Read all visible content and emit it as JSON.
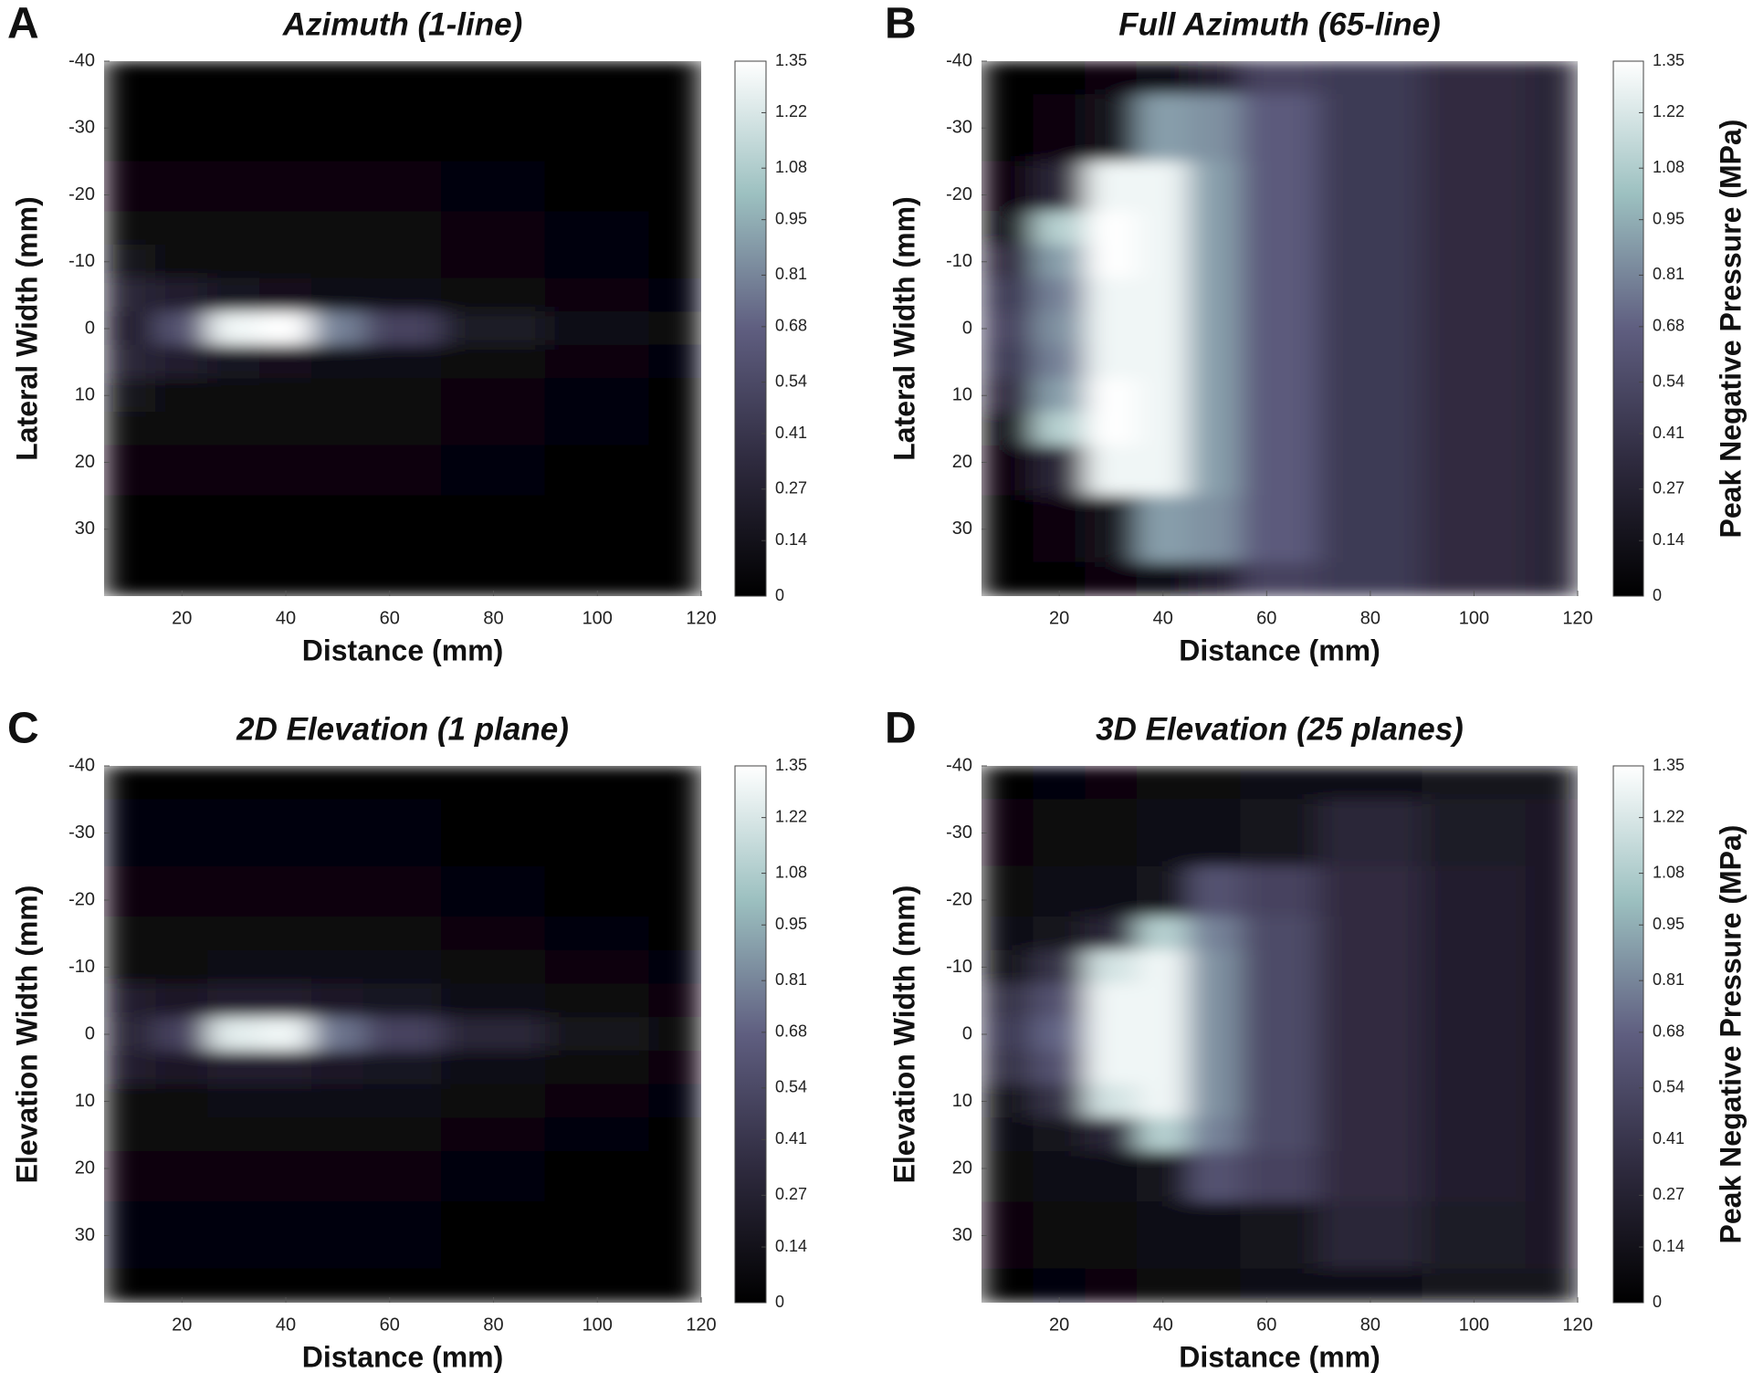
{
  "chart_data": [
    {
      "type": "heatmap",
      "panel": "A",
      "title": "Azimuth (1-line)",
      "xlabel": "Distance (mm)",
      "ylabel": "Lateral Width (mm)",
      "x": [
        10,
        20,
        30,
        40,
        50,
        60,
        80,
        100,
        120
      ],
      "y": [
        -40,
        -30,
        -20,
        -15,
        -10,
        -5,
        0,
        5,
        10,
        15,
        20,
        30,
        40
      ],
      "z": [
        [
          0.02,
          0.02,
          0.02,
          0.02,
          0.02,
          0.02,
          0.02,
          0.02,
          0.02
        ],
        [
          0.03,
          0.03,
          0.03,
          0.03,
          0.03,
          0.03,
          0.03,
          0.02,
          0.02
        ],
        [
          0.05,
          0.05,
          0.05,
          0.05,
          0.05,
          0.05,
          0.04,
          0.03,
          0.03
        ],
        [
          0.06,
          0.06,
          0.06,
          0.06,
          0.06,
          0.06,
          0.05,
          0.04,
          0.03
        ],
        [
          0.15,
          0.08,
          0.07,
          0.07,
          0.07,
          0.06,
          0.05,
          0.04,
          0.03
        ],
        [
          0.3,
          0.25,
          0.18,
          0.14,
          0.12,
          0.1,
          0.08,
          0.05,
          0.04
        ],
        [
          0.25,
          0.6,
          1.3,
          1.35,
          0.8,
          0.5,
          0.22,
          0.1,
          0.06
        ],
        [
          0.3,
          0.25,
          0.18,
          0.14,
          0.12,
          0.1,
          0.08,
          0.05,
          0.04
        ],
        [
          0.15,
          0.08,
          0.07,
          0.07,
          0.07,
          0.06,
          0.05,
          0.04,
          0.03
        ],
        [
          0.06,
          0.06,
          0.06,
          0.06,
          0.06,
          0.06,
          0.05,
          0.04,
          0.03
        ],
        [
          0.05,
          0.05,
          0.05,
          0.05,
          0.05,
          0.05,
          0.04,
          0.03,
          0.03
        ],
        [
          0.03,
          0.03,
          0.03,
          0.03,
          0.03,
          0.03,
          0.03,
          0.02,
          0.02
        ],
        [
          0.02,
          0.02,
          0.02,
          0.02,
          0.02,
          0.02,
          0.02,
          0.02,
          0.02
        ]
      ],
      "xlim": [
        5,
        120
      ],
      "ylim": [
        -40,
        40
      ],
      "xticks": [
        20,
        40,
        60,
        80,
        100,
        120
      ],
      "yticks": [
        -40,
        -30,
        -20,
        -10,
        0,
        10,
        20,
        30
      ],
      "clim": [
        0,
        1.35
      ],
      "cticks": [
        0,
        0.14,
        0.27,
        0.41,
        0.54,
        0.68,
        0.81,
        0.95,
        1.08,
        1.22,
        1.35
      ],
      "colorscale": [
        "#000000",
        "#2e2a3e",
        "#5f5e80",
        "#9cc0c0",
        "#ffffff"
      ]
    },
    {
      "type": "heatmap",
      "panel": "B",
      "title": "Full Azimuth (65-line)",
      "xlabel": "Distance (mm)",
      "ylabel": "Lateral Width (mm)",
      "clabel": "Peak Negative Pressure (MPa)",
      "x": [
        10,
        20,
        30,
        40,
        50,
        60,
        80,
        100,
        120
      ],
      "y": [
        -40,
        -30,
        -20,
        -15,
        -10,
        -5,
        0,
        5,
        10,
        15,
        20,
        30,
        40
      ],
      "z": [
        [
          0.02,
          0.03,
          0.05,
          0.1,
          0.25,
          0.5,
          0.45,
          0.35,
          0.3
        ],
        [
          0.03,
          0.05,
          0.15,
          0.9,
          0.85,
          0.65,
          0.45,
          0.35,
          0.3
        ],
        [
          0.05,
          0.3,
          1.3,
          1.3,
          0.9,
          0.65,
          0.45,
          0.35,
          0.3
        ],
        [
          0.1,
          1.1,
          1.35,
          1.3,
          0.9,
          0.65,
          0.45,
          0.35,
          0.3
        ],
        [
          0.35,
          0.9,
          1.35,
          1.3,
          0.9,
          0.65,
          0.45,
          0.35,
          0.3
        ],
        [
          0.45,
          0.8,
          1.3,
          1.3,
          0.9,
          0.65,
          0.45,
          0.35,
          0.3
        ],
        [
          0.5,
          0.85,
          1.3,
          1.3,
          0.9,
          0.65,
          0.45,
          0.35,
          0.3
        ],
        [
          0.45,
          0.8,
          1.3,
          1.3,
          0.9,
          0.65,
          0.45,
          0.35,
          0.3
        ],
        [
          0.35,
          0.9,
          1.35,
          1.3,
          0.9,
          0.65,
          0.45,
          0.35,
          0.3
        ],
        [
          0.1,
          1.1,
          1.35,
          1.3,
          0.9,
          0.65,
          0.45,
          0.35,
          0.3
        ],
        [
          0.05,
          0.3,
          1.3,
          1.3,
          0.9,
          0.65,
          0.45,
          0.35,
          0.3
        ],
        [
          0.03,
          0.05,
          0.15,
          0.9,
          0.85,
          0.65,
          0.45,
          0.35,
          0.3
        ],
        [
          0.02,
          0.03,
          0.05,
          0.1,
          0.25,
          0.5,
          0.45,
          0.35,
          0.3
        ]
      ],
      "xlim": [
        5,
        120
      ],
      "ylim": [
        -40,
        40
      ],
      "xticks": [
        20,
        40,
        60,
        80,
        100,
        120
      ],
      "yticks": [
        -40,
        -30,
        -20,
        -10,
        0,
        10,
        20,
        30
      ],
      "clim": [
        0,
        1.35
      ],
      "cticks": [
        0,
        0.14,
        0.27,
        0.41,
        0.54,
        0.68,
        0.81,
        0.95,
        1.08,
        1.22,
        1.35
      ],
      "colorscale": [
        "#000000",
        "#2e2a3e",
        "#5f5e80",
        "#9cc0c0",
        "#ffffff"
      ]
    },
    {
      "type": "heatmap",
      "panel": "C",
      "title": "2D Elevation (1 plane)",
      "xlabel": "Distance (mm)",
      "ylabel": "Elevation Width (mm)",
      "x": [
        10,
        20,
        30,
        40,
        50,
        60,
        80,
        100,
        120
      ],
      "y": [
        -40,
        -30,
        -20,
        -15,
        -10,
        -5,
        0,
        5,
        10,
        15,
        20,
        30,
        40
      ],
      "z": [
        [
          0.02,
          0.02,
          0.02,
          0.02,
          0.02,
          0.02,
          0.02,
          0.02,
          0.02
        ],
        [
          0.04,
          0.04,
          0.04,
          0.04,
          0.04,
          0.04,
          0.03,
          0.03,
          0.02
        ],
        [
          0.05,
          0.05,
          0.05,
          0.05,
          0.05,
          0.05,
          0.04,
          0.03,
          0.03
        ],
        [
          0.06,
          0.06,
          0.06,
          0.06,
          0.06,
          0.06,
          0.05,
          0.04,
          0.03
        ],
        [
          0.08,
          0.08,
          0.1,
          0.1,
          0.1,
          0.1,
          0.07,
          0.05,
          0.04
        ],
        [
          0.25,
          0.2,
          0.25,
          0.25,
          0.2,
          0.18,
          0.12,
          0.08,
          0.05
        ],
        [
          0.3,
          0.5,
          1.25,
          1.3,
          0.75,
          0.5,
          0.3,
          0.15,
          0.08
        ],
        [
          0.25,
          0.2,
          0.25,
          0.25,
          0.2,
          0.18,
          0.12,
          0.08,
          0.05
        ],
        [
          0.08,
          0.08,
          0.1,
          0.1,
          0.1,
          0.1,
          0.07,
          0.05,
          0.04
        ],
        [
          0.06,
          0.06,
          0.06,
          0.06,
          0.06,
          0.06,
          0.05,
          0.04,
          0.03
        ],
        [
          0.05,
          0.05,
          0.05,
          0.05,
          0.05,
          0.05,
          0.04,
          0.03,
          0.03
        ],
        [
          0.04,
          0.04,
          0.04,
          0.04,
          0.04,
          0.04,
          0.03,
          0.03,
          0.02
        ],
        [
          0.02,
          0.02,
          0.02,
          0.02,
          0.02,
          0.02,
          0.02,
          0.02,
          0.02
        ]
      ],
      "xlim": [
        5,
        120
      ],
      "ylim": [
        -40,
        40
      ],
      "xticks": [
        20,
        40,
        60,
        80,
        100,
        120
      ],
      "yticks": [
        -40,
        -30,
        -20,
        -10,
        0,
        10,
        20,
        30
      ],
      "clim": [
        0,
        1.35
      ],
      "cticks": [
        0,
        0.14,
        0.27,
        0.41,
        0.54,
        0.68,
        0.81,
        0.95,
        1.08,
        1.22,
        1.35
      ],
      "colorscale": [
        "#000000",
        "#2e2a3e",
        "#5f5e80",
        "#9cc0c0",
        "#ffffff"
      ]
    },
    {
      "type": "heatmap",
      "panel": "D",
      "title": "3D Elevation (25 planes)",
      "xlabel": "Distance (mm)",
      "ylabel": "Elevation Width (mm)",
      "clabel": "Peak Negative Pressure (MPa)",
      "x": [
        10,
        20,
        30,
        40,
        50,
        60,
        80,
        100,
        120
      ],
      "y": [
        -40,
        -30,
        -20,
        -15,
        -10,
        -5,
        0,
        5,
        10,
        15,
        20,
        30,
        40
      ],
      "z": [
        [
          0.03,
          0.04,
          0.05,
          0.06,
          0.08,
          0.1,
          0.12,
          0.15,
          0.15
        ],
        [
          0.05,
          0.06,
          0.08,
          0.1,
          0.12,
          0.15,
          0.3,
          0.22,
          0.2
        ],
        [
          0.08,
          0.1,
          0.12,
          0.15,
          0.6,
          0.5,
          0.35,
          0.25,
          0.2
        ],
        [
          0.1,
          0.15,
          0.3,
          1.1,
          0.8,
          0.55,
          0.35,
          0.25,
          0.2
        ],
        [
          0.15,
          0.4,
          1.2,
          1.3,
          0.85,
          0.55,
          0.35,
          0.25,
          0.2
        ],
        [
          0.4,
          0.6,
          1.3,
          1.3,
          0.85,
          0.55,
          0.35,
          0.25,
          0.2
        ],
        [
          0.45,
          0.7,
          1.3,
          1.3,
          0.85,
          0.55,
          0.35,
          0.25,
          0.2
        ],
        [
          0.4,
          0.6,
          1.3,
          1.3,
          0.85,
          0.55,
          0.35,
          0.25,
          0.2
        ],
        [
          0.15,
          0.4,
          1.2,
          1.3,
          0.85,
          0.55,
          0.35,
          0.25,
          0.2
        ],
        [
          0.1,
          0.15,
          0.3,
          1.1,
          0.8,
          0.55,
          0.35,
          0.25,
          0.2
        ],
        [
          0.08,
          0.1,
          0.12,
          0.15,
          0.6,
          0.5,
          0.35,
          0.25,
          0.2
        ],
        [
          0.05,
          0.06,
          0.08,
          0.1,
          0.12,
          0.15,
          0.3,
          0.22,
          0.2
        ],
        [
          0.03,
          0.04,
          0.05,
          0.06,
          0.08,
          0.1,
          0.12,
          0.15,
          0.15
        ]
      ],
      "xlim": [
        5,
        120
      ],
      "ylim": [
        -40,
        40
      ],
      "xticks": [
        20,
        40,
        60,
        80,
        100,
        120
      ],
      "yticks": [
        -40,
        -30,
        -20,
        -10,
        0,
        10,
        20,
        30
      ],
      "clim": [
        0,
        1.35
      ],
      "cticks": [
        0,
        0.14,
        0.27,
        0.41,
        0.54,
        0.68,
        0.81,
        0.95,
        1.08,
        1.22,
        1.35
      ],
      "colorscale": [
        "#000000",
        "#2e2a3e",
        "#5f5e80",
        "#9cc0c0",
        "#ffffff"
      ]
    }
  ]
}
